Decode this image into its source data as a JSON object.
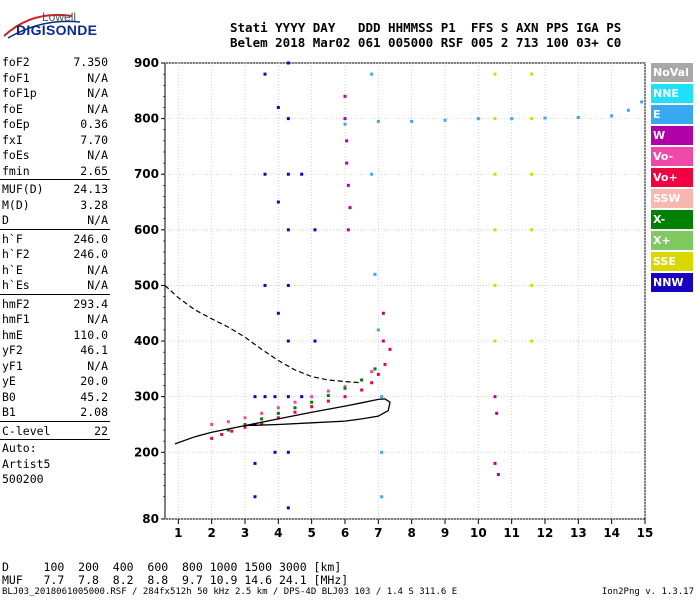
{
  "brand": {
    "line1": "Lowell",
    "line2": "DIGISONDE"
  },
  "header": {
    "line1": "Stati YYYY DAY   DDD HHMMSS P1  FFS S AXN PPS IGA PS",
    "line2": "Belem 2018 Mar02 061 005000 RSF 005 2 713 100 03+ C0"
  },
  "params": [
    {
      "name": "foF2",
      "value": "7.350"
    },
    {
      "name": "foF1",
      "value": "N/A"
    },
    {
      "name": "foF1p",
      "value": "N/A"
    },
    {
      "name": "foE",
      "value": "N/A"
    },
    {
      "name": "foEp",
      "value": "0.36"
    },
    {
      "name": "fxI",
      "value": "7.70"
    },
    {
      "name": "foEs",
      "value": "N/A"
    },
    {
      "name": "fmin",
      "value": "2.65"
    },
    {
      "sep": true
    },
    {
      "name": "MUF(D)",
      "value": "24.13"
    },
    {
      "name": "M(D)",
      "value": "3.28"
    },
    {
      "name": "D",
      "value": "N/A"
    },
    {
      "sep": true
    },
    {
      "name": "h`F",
      "value": "246.0"
    },
    {
      "name": "h`F2",
      "value": "246.0"
    },
    {
      "name": "h`E",
      "value": "N/A"
    },
    {
      "name": "h`Es",
      "value": "N/A"
    },
    {
      "sep": true
    },
    {
      "name": "hmF2",
      "value": "293.4"
    },
    {
      "name": "hmF1",
      "value": "N/A"
    },
    {
      "name": "hmE",
      "value": "110.0"
    },
    {
      "name": "yF2",
      "value": "46.1"
    },
    {
      "name": "yF1",
      "value": "N/A"
    },
    {
      "name": "yE",
      "value": "20.0"
    },
    {
      "name": "B0",
      "value": "45.2"
    },
    {
      "name": "B1",
      "value": "2.08"
    },
    {
      "sep": true
    },
    {
      "name": "C-level",
      "value": "22"
    },
    {
      "sep": true
    },
    {
      "text": "Auto:"
    },
    {
      "text": "Artist5"
    },
    {
      "text": "500200"
    }
  ],
  "legend": [
    {
      "label": "NoVal",
      "color": "#a8a8a8"
    },
    {
      "label": "NNE",
      "color": "#20e0f8"
    },
    {
      "label": "E",
      "color": "#38a8f0"
    },
    {
      "label": "W",
      "color": "#b000a8"
    },
    {
      "label": "Vo-",
      "color": "#f048a8"
    },
    {
      "label": "Vo+",
      "color": "#f00040"
    },
    {
      "label": "SSW",
      "color": "#f8b8b0"
    },
    {
      "label": "X-",
      "color": "#008000"
    },
    {
      "label": "X+",
      "color": "#80c860"
    },
    {
      "label": "SSE",
      "color": "#d8d800"
    },
    {
      "label": "NNW",
      "color": "#1800c0"
    }
  ],
  "footer": {
    "line1": "D     100  200  400  600  800 1000 1500 3000 [km]",
    "line2": "MUF   7.7  7.8  8.2  8.8  9.7 10.9 14.6 24.1 [MHz]",
    "source": "BLJ03_2018061005000.RSF / 284fx512h 50 kHz 2.5 km / DPS-4D BLJ03 103 / 1.4 S 311.6 E",
    "version": "Ion2Png v. 1.3.17"
  },
  "chart_data": {
    "type": "scatter",
    "title": "",
    "xlabel": "",
    "ylabel": "",
    "xlim": [
      0.6,
      15
    ],
    "ylim": [
      80,
      900
    ],
    "x_ticks": [
      1,
      2,
      3,
      4,
      5,
      6,
      7,
      8,
      9,
      10,
      11,
      12,
      13,
      14,
      15
    ],
    "y_ticks": [
      80,
      200,
      300,
      400,
      500,
      600,
      700,
      800,
      900
    ],
    "echo_traces": [
      {
        "polarization": "Vo+",
        "points": [
          [
            2.0,
            225
          ],
          [
            2.3,
            232
          ],
          [
            2.6,
            238
          ],
          [
            3.0,
            245
          ],
          [
            3.5,
            252
          ],
          [
            4.0,
            262
          ],
          [
            4.5,
            272
          ],
          [
            5.0,
            282
          ],
          [
            5.5,
            292
          ],
          [
            6.0,
            300
          ],
          [
            6.5,
            312
          ],
          [
            6.8,
            325
          ],
          [
            7.0,
            340
          ],
          [
            7.2,
            358
          ],
          [
            7.35,
            385
          ]
        ]
      },
      {
        "polarization": "Vo-",
        "points": [
          [
            2.0,
            250
          ],
          [
            2.5,
            255
          ],
          [
            3.0,
            262
          ],
          [
            3.5,
            270
          ],
          [
            4.0,
            280
          ],
          [
            4.5,
            290
          ],
          [
            5.0,
            300
          ],
          [
            5.5,
            310
          ],
          [
            6.0,
            318
          ],
          [
            6.5,
            330
          ],
          [
            6.8,
            345
          ]
        ]
      },
      {
        "polarization": "X-",
        "points": [
          [
            2.5,
            240
          ],
          [
            3.0,
            250
          ],
          [
            3.5,
            260
          ],
          [
            4.0,
            270
          ],
          [
            4.5,
            280
          ],
          [
            5.0,
            290
          ],
          [
            5.5,
            302
          ],
          [
            6.0,
            315
          ],
          [
            6.5,
            330
          ],
          [
            6.9,
            350
          ]
        ]
      },
      {
        "polarization": "W",
        "points": [
          [
            6.0,
            840
          ],
          [
            6.0,
            800
          ],
          [
            6.05,
            760
          ],
          [
            6.05,
            720
          ],
          [
            6.1,
            680
          ],
          [
            6.15,
            640
          ],
          [
            6.1,
            600
          ],
          [
            7.15,
            450
          ],
          [
            7.15,
            400
          ],
          [
            10.5,
            300
          ],
          [
            10.55,
            270
          ],
          [
            10.5,
            180
          ],
          [
            10.6,
            160
          ]
        ]
      },
      {
        "polarization": "NNW",
        "points": [
          [
            3.3,
            120
          ],
          [
            3.3,
            180
          ],
          [
            3.3,
            250
          ],
          [
            3.3,
            300
          ],
          [
            4.3,
            100
          ],
          [
            4.3,
            200
          ],
          [
            4.3,
            300
          ],
          [
            4.3,
            400
          ],
          [
            4.3,
            500
          ],
          [
            4.3,
            600
          ],
          [
            4.3,
            700
          ],
          [
            4.3,
            800
          ],
          [
            4.3,
            900
          ],
          [
            3.6,
            880
          ],
          [
            3.6,
            700
          ],
          [
            3.6,
            500
          ],
          [
            3.6,
            300
          ],
          [
            4.0,
            820
          ],
          [
            4.0,
            650
          ],
          [
            4.0,
            450
          ],
          [
            3.9,
            300
          ],
          [
            3.9,
            200
          ],
          [
            5.1,
            600
          ],
          [
            5.1,
            400
          ],
          [
            4.7,
            700
          ],
          [
            4.7,
            300
          ]
        ]
      },
      {
        "polarization": "E",
        "points": [
          [
            6.0,
            790
          ],
          [
            7.0,
            795
          ],
          [
            8.0,
            795
          ],
          [
            9.0,
            797
          ],
          [
            10.0,
            800
          ],
          [
            11.0,
            800
          ],
          [
            12.0,
            801
          ],
          [
            13.0,
            802
          ],
          [
            14.0,
            805
          ],
          [
            14.5,
            815
          ],
          [
            14.9,
            830
          ],
          [
            6.8,
            880
          ],
          [
            6.8,
            700
          ],
          [
            6.9,
            520
          ],
          [
            7.0,
            420
          ],
          [
            7.1,
            300
          ],
          [
            7.1,
            200
          ],
          [
            7.1,
            120
          ]
        ]
      },
      {
        "polarization": "SSE",
        "points": [
          [
            10.5,
            880
          ],
          [
            10.5,
            800
          ],
          [
            10.5,
            700
          ],
          [
            10.5,
            600
          ],
          [
            10.5,
            500
          ],
          [
            10.5,
            400
          ],
          [
            11.6,
            880
          ],
          [
            11.6,
            800
          ],
          [
            11.6,
            700
          ],
          [
            11.6,
            600
          ],
          [
            11.6,
            500
          ],
          [
            11.6,
            400
          ]
        ]
      }
    ],
    "model_curves": {
      "solid": [
        [
          0.9,
          215
        ],
        [
          1.5,
          228
        ],
        [
          2.0,
          236
        ],
        [
          3.0,
          248
        ],
        [
          4.0,
          260
        ],
        [
          5.0,
          272
        ],
        [
          6.0,
          283
        ],
        [
          6.5,
          289
        ],
        [
          7.0,
          295
        ],
        [
          7.2,
          296
        ],
        [
          7.35,
          290
        ],
        [
          7.3,
          275
        ],
        [
          7.0,
          265
        ],
        [
          6.5,
          260
        ],
        [
          6.0,
          256
        ],
        [
          5.0,
          253
        ],
        [
          4.0,
          250
        ],
        [
          3.0,
          248
        ]
      ],
      "dashed": [
        [
          0.6,
          500
        ],
        [
          1.0,
          478
        ],
        [
          1.5,
          456
        ],
        [
          2.0,
          440
        ],
        [
          2.5,
          425
        ],
        [
          3.0,
          407
        ],
        [
          3.5,
          385
        ],
        [
          4.0,
          365
        ],
        [
          4.5,
          348
        ],
        [
          5.0,
          336
        ],
        [
          5.5,
          330
        ],
        [
          6.0,
          327
        ],
        [
          6.5,
          325
        ]
      ]
    }
  }
}
